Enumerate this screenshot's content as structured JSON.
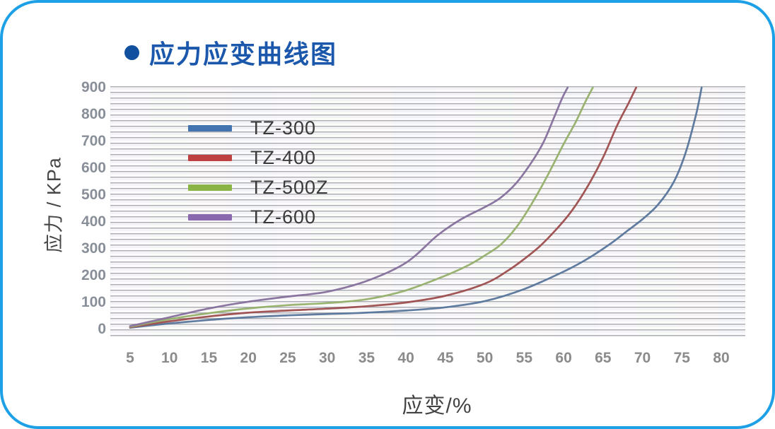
{
  "card": {
    "title": "应力应变曲线图",
    "accent_border_color": "#1ea0e6",
    "title_color": "#1b57ab",
    "bullet_color": "#10509f"
  },
  "chart_data": {
    "type": "line",
    "title": "应力应变曲线图",
    "xlabel": "应变/%",
    "ylabel": "应力 / KPa",
    "xticks": [
      5,
      10,
      15,
      20,
      25,
      30,
      35,
      40,
      45,
      50,
      55,
      60,
      65,
      70,
      75,
      80
    ],
    "yticks": [
      0,
      100,
      200,
      300,
      400,
      500,
      600,
      700,
      800,
      900
    ],
    "xlim": [
      2.5,
      83
    ],
    "ylim": [
      0,
      900
    ],
    "grid": true,
    "legend_position": "top-left-inside",
    "series": [
      {
        "name": "TZ-300",
        "color": "#4474b0",
        "points": [
          [
            5,
            6
          ],
          [
            10,
            22
          ],
          [
            15,
            35
          ],
          [
            20,
            45
          ],
          [
            25,
            52
          ],
          [
            30,
            57
          ],
          [
            35,
            62
          ],
          [
            40,
            70
          ],
          [
            45,
            82
          ],
          [
            50,
            105
          ],
          [
            55,
            150
          ],
          [
            60,
            215
          ],
          [
            63,
            262
          ],
          [
            66,
            320
          ],
          [
            68,
            365
          ],
          [
            70,
            410
          ],
          [
            72,
            465
          ],
          [
            74,
            550
          ],
          [
            75.5,
            660
          ],
          [
            76.8,
            800
          ],
          [
            77.5,
            900
          ]
        ]
      },
      {
        "name": "TZ-400",
        "color": "#bf4040",
        "points": [
          [
            5,
            8
          ],
          [
            10,
            30
          ],
          [
            15,
            48
          ],
          [
            20,
            62
          ],
          [
            25,
            70
          ],
          [
            30,
            77
          ],
          [
            35,
            86
          ],
          [
            40,
            100
          ],
          [
            45,
            125
          ],
          [
            50,
            170
          ],
          [
            53,
            220
          ],
          [
            55,
            262
          ],
          [
            57,
            310
          ],
          [
            59,
            370
          ],
          [
            61,
            440
          ],
          [
            63,
            530
          ],
          [
            65,
            640
          ],
          [
            66.8,
            760
          ],
          [
            68.2,
            840
          ],
          [
            69.2,
            900
          ]
        ]
      },
      {
        "name": "TZ-500Z",
        "color": "#8ab546",
        "points": [
          [
            5,
            10
          ],
          [
            10,
            38
          ],
          [
            15,
            60
          ],
          [
            20,
            78
          ],
          [
            25,
            90
          ],
          [
            30,
            98
          ],
          [
            35,
            112
          ],
          [
            40,
            145
          ],
          [
            45,
            200
          ],
          [
            48,
            240
          ],
          [
            50,
            275
          ],
          [
            52,
            315
          ],
          [
            54,
            380
          ],
          [
            56,
            470
          ],
          [
            58,
            575
          ],
          [
            60,
            690
          ],
          [
            61.5,
            770
          ],
          [
            62.8,
            850
          ],
          [
            63.7,
            900
          ]
        ]
      },
      {
        "name": "TZ-600",
        "color": "#8a68ae",
        "points": [
          [
            5,
            12
          ],
          [
            10,
            45
          ],
          [
            15,
            78
          ],
          [
            20,
            103
          ],
          [
            25,
            122
          ],
          [
            30,
            140
          ],
          [
            35,
            180
          ],
          [
            40,
            248
          ],
          [
            44,
            350
          ],
          [
            47,
            410
          ],
          [
            50,
            455
          ],
          [
            52,
            490
          ],
          [
            54,
            545
          ],
          [
            56,
            625
          ],
          [
            57.5,
            700
          ],
          [
            58.8,
            790
          ],
          [
            59.8,
            860
          ],
          [
            60.5,
            900
          ]
        ]
      }
    ]
  }
}
